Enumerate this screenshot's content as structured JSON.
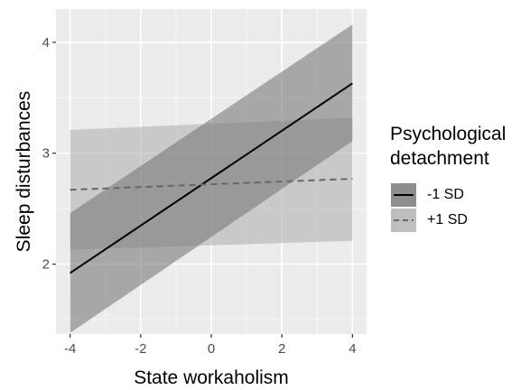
{
  "chart_data": {
    "type": "line",
    "title": "",
    "xlabel": "State workaholism",
    "ylabel": "Sleep disturbances",
    "xlim": [
      -4.4,
      4.4
    ],
    "ylim": [
      1.37,
      4.3
    ],
    "x_ticks": [
      -4,
      -2,
      0,
      2,
      4
    ],
    "x_tick_labels": [
      "-4",
      "-2",
      "0",
      "2",
      "4"
    ],
    "y_ticks": [
      2,
      3,
      4
    ],
    "y_tick_labels": [
      "2",
      "3",
      "4"
    ],
    "grid": true,
    "legend": {
      "title_lines": [
        "Psychological",
        "detachment"
      ],
      "placement": "right"
    },
    "series": [
      {
        "name": "-1 SD",
        "line_style": "solid",
        "color": "#000000",
        "x": [
          -4,
          4
        ],
        "y": [
          1.92,
          3.63
        ],
        "ci_lower": [
          1.38,
          3.11
        ],
        "ci_upper": [
          2.46,
          4.16
        ],
        "ribbon_color": "#7a7a7a"
      },
      {
        "name": "+1 SD",
        "line_style": "dashed",
        "color": "#666666",
        "x": [
          -4,
          4
        ],
        "y": [
          2.67,
          2.77
        ],
        "ci_lower": [
          2.13,
          2.21
        ],
        "ci_upper": [
          3.21,
          3.32
        ],
        "ribbon_color": "#b3b3b3"
      }
    ]
  }
}
